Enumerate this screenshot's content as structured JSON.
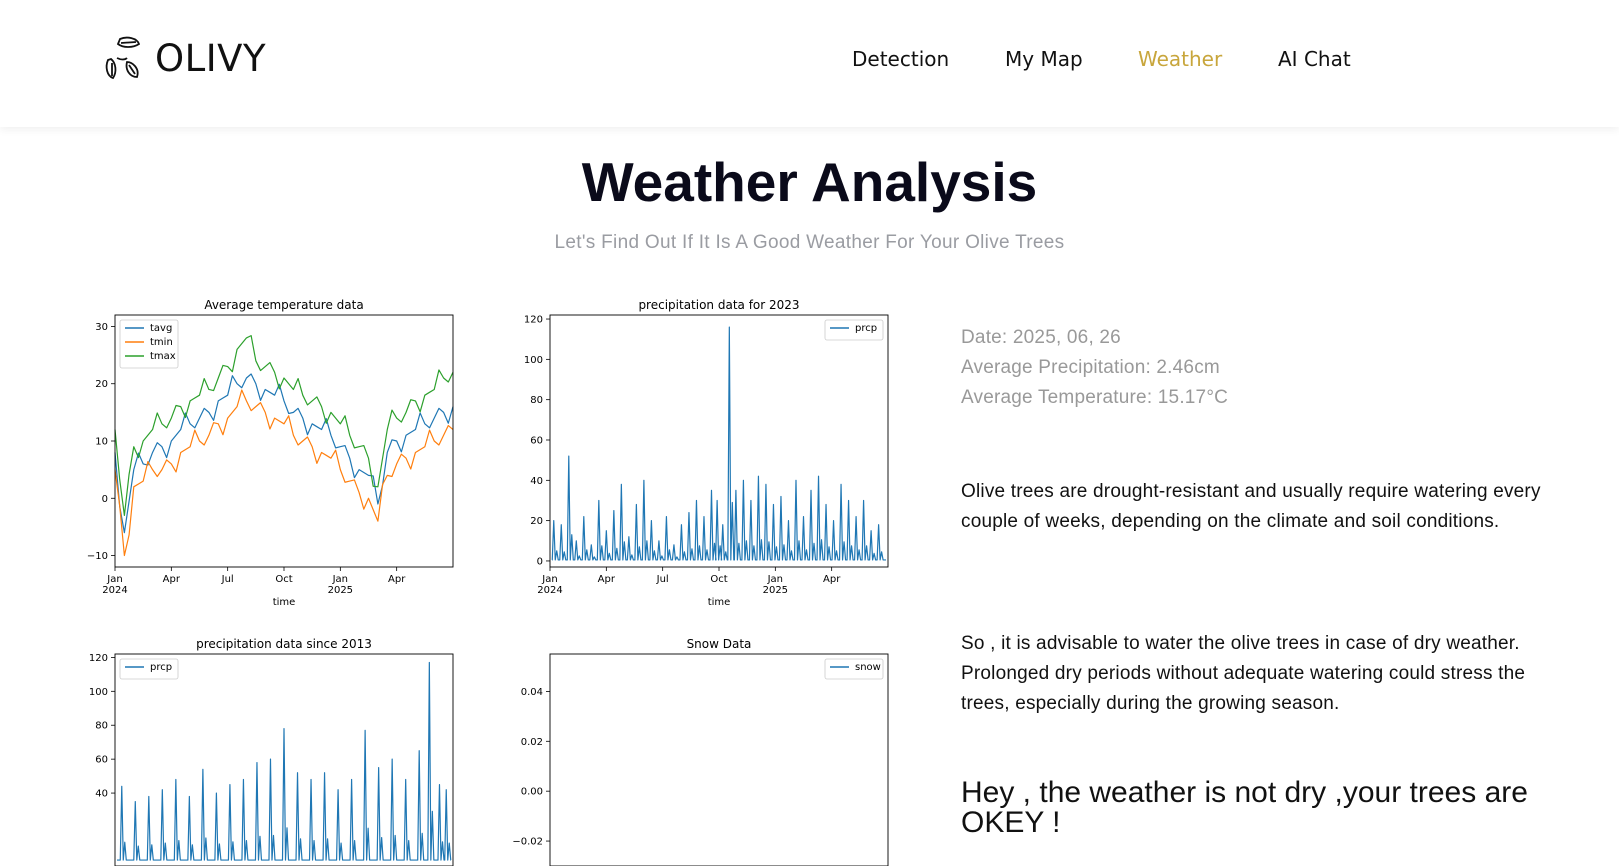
{
  "brand": {
    "name": "OLIVY",
    "logo_icon": "leaves-icon"
  },
  "nav": [
    {
      "label": "Detection",
      "active": false
    },
    {
      "label": "My Map",
      "active": false
    },
    {
      "label": "Weather",
      "active": true
    },
    {
      "label": "AI Chat",
      "active": false
    }
  ],
  "colors": {
    "accent": "#c8a63c",
    "series_blue": "#1f77b4",
    "series_orange": "#ff7f0e",
    "series_green": "#2ca02c"
  },
  "page": {
    "title": "Weather Analysis",
    "subtitle": "Let's Find Out If It Is A Good Weather For Your Olive Trees"
  },
  "info": {
    "date": "Date: 2025, 06, 26",
    "avg_precip": "Average Precipitation: 2.46cm",
    "avg_temp": "Average Temperature: 15.17°C"
  },
  "paragraphs": [
    "Olive trees are drought-resistant and usually require watering every couple of weeks, depending on the climate and soil conditions.",
    "So , it is advisable to water the olive trees in case of dry weather. Prolonged dry periods without adequate watering could stress the trees, especially during the growing season."
  ],
  "verdict": "Hey , the weather is not dry ,your trees are OKEY !",
  "chart_data": [
    {
      "type": "line",
      "title": "Average temperature data",
      "xlabel": "time",
      "ylim": [
        -12,
        32
      ],
      "yticks": [
        -10,
        0,
        10,
        20,
        30
      ],
      "ytick_labels": [
        "−10",
        "0",
        "10",
        "20",
        "30"
      ],
      "xticks": [
        {
          "month": 0,
          "label": "Jan",
          "sub": "2024"
        },
        {
          "month": 3,
          "label": "Apr",
          "sub": ""
        },
        {
          "month": 6,
          "label": "Jul",
          "sub": ""
        },
        {
          "month": 9,
          "label": "Oct",
          "sub": ""
        },
        {
          "month": 12,
          "label": "Jan",
          "sub": "2025"
        },
        {
          "month": 15,
          "label": "Apr",
          "sub": ""
        }
      ],
      "xlim": [
        0,
        18
      ],
      "legend": "top-left",
      "x": [
        0,
        0.5,
        1,
        1.5,
        2,
        2.5,
        3,
        3.5,
        4,
        4.5,
        5,
        5.5,
        6,
        6.5,
        7,
        7.5,
        8,
        8.5,
        9,
        9.5,
        10,
        10.5,
        11,
        11.5,
        12,
        12.5,
        13,
        13.5,
        14,
        14.5,
        15,
        15.5,
        16,
        16.5,
        17,
        17.5,
        18
      ],
      "series": [
        {
          "name": "tavg",
          "color": "#1f77b4",
          "values": [
            8,
            -6,
            5,
            6,
            8,
            9,
            10,
            12,
            13,
            14,
            15,
            17,
            18,
            20,
            21,
            20,
            19,
            18,
            17,
            15,
            14,
            13,
            12,
            11,
            9,
            7,
            5,
            4,
            -1,
            8,
            10,
            11,
            12,
            13,
            14,
            15,
            16
          ]
        },
        {
          "name": "tmin",
          "color": "#ff7f0e",
          "values": [
            5,
            -10,
            2,
            3,
            5,
            5,
            6,
            8,
            9,
            10,
            11,
            13,
            14,
            16,
            17,
            16,
            15,
            14,
            13,
            11,
            10,
            9,
            8,
            7,
            5,
            3,
            1,
            0,
            -4,
            4,
            6,
            7,
            8,
            9,
            10,
            11,
            12
          ]
        },
        {
          "name": "tmax",
          "color": "#2ca02c",
          "values": [
            12,
            -3,
            9,
            10,
            12,
            13,
            14,
            16,
            17,
            18,
            19,
            21,
            23,
            26,
            28,
            24,
            23,
            22,
            21,
            19,
            18,
            17,
            16,
            15,
            13,
            11,
            9,
            7,
            2,
            12,
            14,
            15,
            17,
            18,
            19,
            21,
            22
          ]
        }
      ]
    },
    {
      "type": "line",
      "title": "precipitation data for 2023",
      "xlabel": "time",
      "ylim": [
        -3,
        122
      ],
      "yticks": [
        0,
        20,
        40,
        60,
        80,
        100,
        120
      ],
      "ytick_labels": [
        "0",
        "20",
        "40",
        "60",
        "80",
        "100",
        "120"
      ],
      "xticks": [
        {
          "month": 0,
          "label": "Jan",
          "sub": "2024"
        },
        {
          "month": 3,
          "label": "Apr",
          "sub": ""
        },
        {
          "month": 6,
          "label": "Jul",
          "sub": ""
        },
        {
          "month": 9,
          "label": "Oct",
          "sub": ""
        },
        {
          "month": 12,
          "label": "Jan",
          "sub": "2025"
        },
        {
          "month": 15,
          "label": "Apr",
          "sub": ""
        }
      ],
      "xlim": [
        0,
        18
      ],
      "legend": "top-right",
      "series": [
        {
          "name": "prcp",
          "color": "#1f77b4",
          "points": [
            [
              0.2,
              20
            ],
            [
              0.6,
              18
            ],
            [
              1,
              52
            ],
            [
              1.4,
              10
            ],
            [
              1.8,
              22
            ],
            [
              2.2,
              8
            ],
            [
              2.6,
              30
            ],
            [
              3,
              15
            ],
            [
              3.4,
              25
            ],
            [
              3.8,
              38
            ],
            [
              4.2,
              12
            ],
            [
              4.6,
              28
            ],
            [
              5,
              40
            ],
            [
              5.4,
              20
            ],
            [
              5.8,
              10
            ],
            [
              6.2,
              22
            ],
            [
              6.6,
              8
            ],
            [
              7,
              18
            ],
            [
              7.4,
              24
            ],
            [
              7.8,
              30
            ],
            [
              8.2,
              22
            ],
            [
              8.6,
              35
            ],
            [
              8.9,
              30
            ],
            [
              9.2,
              18
            ],
            [
              9.55,
              116
            ],
            [
              9.9,
              35
            ],
            [
              10.3,
              40
            ],
            [
              10.7,
              30
            ],
            [
              11.1,
              42
            ],
            [
              11.5,
              38
            ],
            [
              11.9,
              28
            ],
            [
              12.3,
              32
            ],
            [
              12.7,
              20
            ],
            [
              13.1,
              40
            ],
            [
              13.5,
              22
            ],
            [
              13.9,
              35
            ],
            [
              14.3,
              42
            ],
            [
              14.7,
              28
            ],
            [
              15.1,
              20
            ],
            [
              15.5,
              38
            ],
            [
              15.9,
              30
            ],
            [
              16.3,
              22
            ],
            [
              16.7,
              30
            ],
            [
              17.1,
              15
            ],
            [
              17.5,
              18
            ]
          ]
        }
      ]
    },
    {
      "type": "line",
      "title": "precipitation data since 2013",
      "ylim": [
        -3,
        122
      ],
      "yticks": [
        40,
        60,
        80,
        100,
        120
      ],
      "ytick_labels": [
        "40",
        "60",
        "80",
        "100",
        "120"
      ],
      "xlim": [
        0,
        100
      ],
      "legend": "top-left",
      "series": [
        {
          "name": "prcp",
          "color": "#1f77b4",
          "points": [
            [
              2,
              44
            ],
            [
              6,
              35
            ],
            [
              10,
              38
            ],
            [
              14,
              42
            ],
            [
              18,
              48
            ],
            [
              22,
              38
            ],
            [
              26,
              54
            ],
            [
              30,
              40
            ],
            [
              34,
              45
            ],
            [
              38,
              48
            ],
            [
              42,
              58
            ],
            [
              46,
              60
            ],
            [
              50,
              78
            ],
            [
              54,
              52
            ],
            [
              58,
              48
            ],
            [
              62,
              52
            ],
            [
              66,
              42
            ],
            [
              70,
              48
            ],
            [
              74,
              77
            ],
            [
              78,
              55
            ],
            [
              82,
              60
            ],
            [
              86,
              48
            ],
            [
              90,
              65
            ],
            [
              93,
              117
            ],
            [
              96,
              45
            ],
            [
              98,
              42
            ]
          ]
        }
      ]
    },
    {
      "type": "line",
      "title": "Snow Data",
      "ylim": [
        -0.03,
        0.055
      ],
      "yticks": [
        -0.02,
        0.0,
        0.02,
        0.04
      ],
      "ytick_labels": [
        "−0.02",
        "0.00",
        "0.02",
        "0.04"
      ],
      "legend": "top-right",
      "series": [
        {
          "name": "snow",
          "color": "#1f77b4",
          "values": []
        }
      ]
    }
  ]
}
